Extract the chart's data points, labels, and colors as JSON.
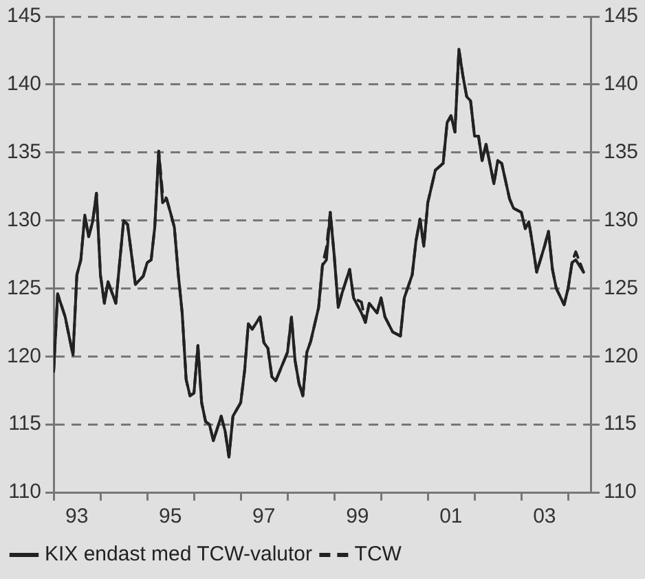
{
  "chart_data": {
    "type": "line",
    "xlim": [
      "1993-01",
      "2004-07"
    ],
    "xticks": [
      {
        "value": "1993",
        "label": null
      },
      {
        "value": "1993-07",
        "label": "93"
      },
      {
        "value": "1994",
        "label": null
      },
      {
        "value": "1995",
        "label": null
      },
      {
        "value": "1995-07",
        "label": "95"
      },
      {
        "value": "1996",
        "label": null
      },
      {
        "value": "1997",
        "label": null
      },
      {
        "value": "1997-07",
        "label": "97"
      },
      {
        "value": "1998",
        "label": null
      },
      {
        "value": "1999",
        "label": null
      },
      {
        "value": "1999-07",
        "label": "99"
      },
      {
        "value": "2000",
        "label": null
      },
      {
        "value": "2001",
        "label": null
      },
      {
        "value": "2001-07",
        "label": "01"
      },
      {
        "value": "2002",
        "label": null
      },
      {
        "value": "2003",
        "label": null
      },
      {
        "value": "2003-07",
        "label": "03"
      },
      {
        "value": "2004",
        "label": null
      }
    ],
    "ylim": [
      110,
      145
    ],
    "yticks": [
      110,
      115,
      120,
      125,
      130,
      135,
      140,
      145
    ],
    "y2lim": [
      110,
      145
    ],
    "y2ticks": [
      110,
      115,
      120,
      125,
      130,
      135,
      140,
      145
    ],
    "grid": "y",
    "legend": "bottom",
    "marker": "none",
    "x": [
      "1993-01",
      "1993-02",
      "1993-04",
      "1993-05",
      "1993-06",
      "1993-07",
      "1993-08",
      "1993-09",
      "1993-10",
      "1993-11",
      "1993-12",
      "1994-01",
      "1994-02",
      "1994-03",
      "1994-05",
      "1994-07",
      "1994-08",
      "1994-10",
      "1994-12",
      "1995-01",
      "1995-02",
      "1995-03",
      "1995-04",
      "1995-05",
      "1995-06",
      "1995-07",
      "1995-08",
      "1995-09",
      "1995-10",
      "1995-11",
      "1995-12",
      "1996-01",
      "1996-02",
      "1996-03",
      "1996-04",
      "1996-05",
      "1996-06",
      "1996-08",
      "1996-09",
      "1996-10",
      "1996-11",
      "1997-01",
      "1997-02",
      "1997-03",
      "1997-04",
      "1997-06",
      "1997-07",
      "1997-08",
      "1997-09",
      "1997-10",
      "1998-01",
      "1998-02",
      "1998-03",
      "1998-04",
      "1998-05",
      "1998-06",
      "1998-07",
      "1998-09",
      "1998-10",
      "1998-11",
      "1998-12",
      "1999-01",
      "1999-02",
      "1999-03",
      "1999-05",
      "1999-06",
      "1999-08",
      "1999-09",
      "1999-10",
      "1999-12",
      "2000-01",
      "2000-02",
      "2000-04",
      "2000-06",
      "2000-07",
      "2000-09",
      "2000-10",
      "2000-11",
      "2000-12",
      "2001-01",
      "2001-03",
      "2001-05",
      "2001-06",
      "2001-07",
      "2001-08",
      "2001-09",
      "2001-10",
      "2001-11",
      "2001-12",
      "2002-01",
      "2002-02",
      "2002-03",
      "2002-04",
      "2002-06",
      "2002-07",
      "2002-08",
      "2002-10",
      "2002-11",
      "2003-01",
      "2003-02",
      "2003-03",
      "2003-04",
      "2003-05",
      "2003-07",
      "2003-08",
      "2003-09",
      "2003-10",
      "2003-12",
      "2004-01",
      "2004-02",
      "2004-03",
      "2004-05"
    ],
    "series": [
      {
        "name": "KIX endast med TCW-valutor",
        "color": "#222222",
        "line_style": "solid",
        "values": [
          118.9,
          124.6,
          122.9,
          121.5,
          120.1,
          126.0,
          127.1,
          130.4,
          128.8,
          129.9,
          132.0,
          126.0,
          123.9,
          125.5,
          123.9,
          130.0,
          129.7,
          125.3,
          125.9,
          126.9,
          127.1,
          129.5,
          135.1,
          131.3,
          131.6,
          130.6,
          129.5,
          126.0,
          123.2,
          118.3,
          117.1,
          117.3,
          120.8,
          116.6,
          115.2,
          115.0,
          113.8,
          115.6,
          114.5,
          112.6,
          115.6,
          116.6,
          119.0,
          122.4,
          122.0,
          122.9,
          121.0,
          120.6,
          118.5,
          118.2,
          120.3,
          122.9,
          119.7,
          118.0,
          117.1,
          120.3,
          121.1,
          123.6,
          126.7,
          127.1,
          130.6,
          127.4,
          123.6,
          124.6,
          126.4,
          124.3,
          123.2,
          122.5,
          123.9,
          123.2,
          124.3,
          122.9,
          121.8,
          121.5,
          124.3,
          126.0,
          128.5,
          130.1,
          128.1,
          131.3,
          133.7,
          134.2,
          137.2,
          137.7,
          136.5,
          142.6,
          140.7,
          139.1,
          138.8,
          136.2,
          136.2,
          134.4,
          135.6,
          132.7,
          134.4,
          134.2,
          131.6,
          130.9,
          130.6,
          129.4,
          129.9,
          128.1,
          126.2,
          128.1,
          129.2,
          126.4,
          125.0,
          123.8,
          125.0,
          126.9,
          127.1,
          126.2
        ]
      },
      {
        "name": "TCW",
        "color": "#222222",
        "line_style": "dashed",
        "values": [
          118.9,
          124.6,
          122.9,
          121.5,
          120.1,
          126.0,
          127.1,
          130.4,
          128.8,
          129.9,
          132.0,
          126.0,
          123.9,
          125.5,
          123.9,
          130.0,
          129.7,
          125.3,
          125.9,
          126.9,
          127.1,
          129.5,
          135.1,
          132.0,
          131.6,
          130.6,
          129.5,
          126.0,
          123.2,
          118.3,
          117.1,
          117.3,
          120.8,
          116.6,
          115.2,
          115.0,
          113.8,
          115.6,
          114.5,
          112.6,
          115.6,
          116.6,
          119.0,
          122.4,
          122.0,
          122.9,
          121.0,
          120.6,
          118.5,
          118.2,
          120.3,
          122.9,
          119.7,
          118.0,
          117.1,
          120.3,
          121.1,
          123.6,
          126.7,
          128.0,
          130.6,
          127.4,
          123.6,
          124.6,
          126.4,
          124.3,
          124.0,
          122.5,
          123.9,
          123.2,
          124.3,
          122.9,
          121.8,
          121.5,
          124.3,
          126.0,
          128.5,
          130.1,
          128.1,
          131.3,
          133.7,
          134.2,
          137.2,
          137.7,
          136.5,
          142.6,
          140.7,
          139.1,
          138.8,
          136.2,
          136.2,
          134.4,
          135.6,
          132.7,
          134.4,
          134.2,
          131.6,
          130.9,
          130.6,
          129.4,
          129.9,
          128.1,
          126.2,
          128.1,
          129.2,
          126.4,
          125.0,
          123.8,
          125.0,
          126.9,
          127.7,
          126.2
        ]
      }
    ]
  }
}
